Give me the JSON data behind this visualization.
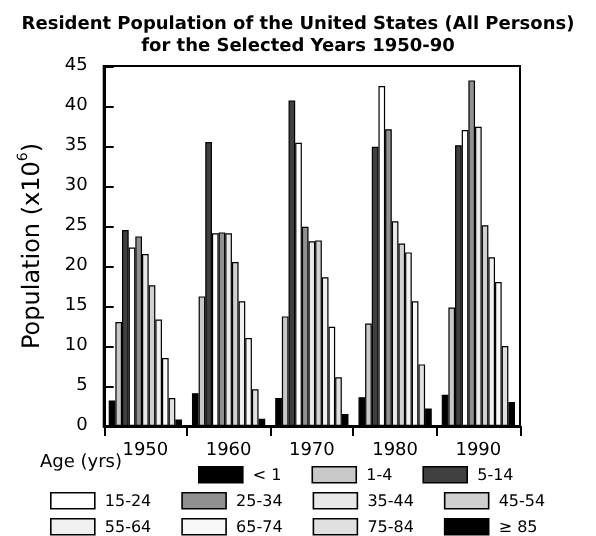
{
  "chart_data": {
    "type": "bar",
    "title": "Resident Population of the United States (All Persons)\nfor the Selected Years 1950-90",
    "ylabel": "Population (x10$^{6}$)",
    "legend_title": "Age (yrs)",
    "categories": [
      "1950",
      "1960",
      "1970",
      "1980",
      "1990"
    ],
    "series": [
      {
        "name": "< 1",
        "color": "#000000",
        "values": [
          3.2,
          4.1,
          3.5,
          3.6,
          3.9
        ]
      },
      {
        "name": "1-4",
        "color": "#c8c8c8",
        "values": [
          13,
          16.2,
          13.7,
          12.8,
          14.8
        ]
      },
      {
        "name": "5-14",
        "color": "#404040",
        "values": [
          24.5,
          35.5,
          40.7,
          34.9,
          35.1
        ]
      },
      {
        "name": "15-24",
        "color": "#ffffff",
        "values": [
          22.3,
          24.1,
          35.4,
          42.5,
          37
        ]
      },
      {
        "name": "25-34",
        "color": "#909090",
        "values": [
          23.7,
          24.2,
          24.9,
          37.1,
          43.2
        ]
      },
      {
        "name": "35-44",
        "color": "#e8e8e8",
        "values": [
          21.5,
          24.1,
          23.1,
          25.6,
          37.4
        ]
      },
      {
        "name": "45-54",
        "color": "#d0d0d0",
        "values": [
          17.6,
          20.5,
          23.2,
          22.8,
          25.1
        ]
      },
      {
        "name": "55-64",
        "color": "#f0f0f0",
        "values": [
          13.3,
          15.6,
          18.6,
          21.7,
          21.1
        ]
      },
      {
        "name": "65-74",
        "color": "#f8f8f8",
        "values": [
          8.5,
          11,
          12.4,
          15.6,
          18
        ]
      },
      {
        "name": "75-84",
        "color": "#e0e0e0",
        "values": [
          3.5,
          4.6,
          6.1,
          7.7,
          10
        ]
      },
      {
        "name": "≥ 85",
        "color": "#000000",
        "values": [
          0.8,
          0.9,
          1.5,
          2.2,
          3
        ]
      }
    ],
    "ylim": [
      0,
      45
    ],
    "yticks": [
      0,
      5,
      10,
      15,
      20,
      25,
      30,
      35,
      40,
      45
    ],
    "grid": false,
    "legend": "bottom"
  }
}
